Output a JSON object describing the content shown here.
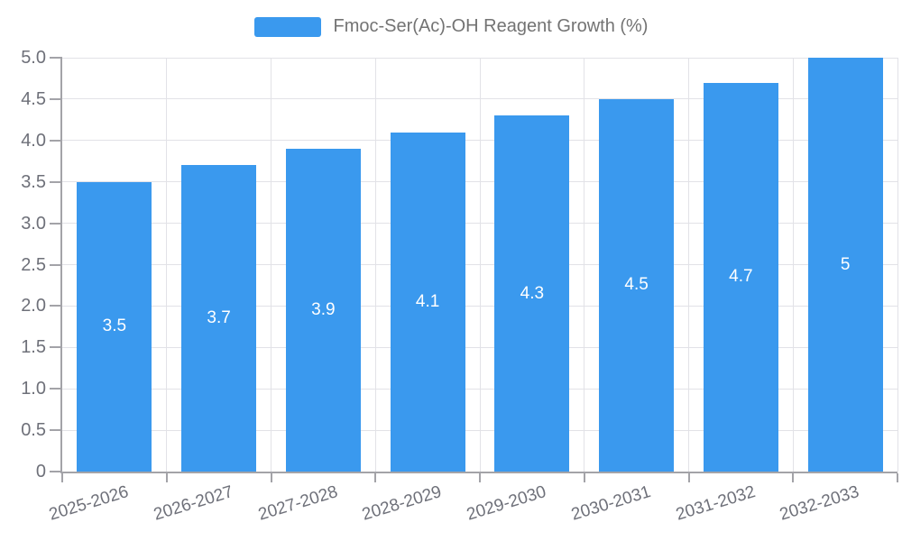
{
  "legend": {
    "label": "Fmoc-Ser(Ac)-OH Reagent Growth (%)",
    "swatch_color": "#3A99EE"
  },
  "chart_data": {
    "type": "bar",
    "title": "Fmoc-Ser(Ac)-OH Reagent Growth (%)",
    "categories": [
      "2025-2026",
      "2026-2027",
      "2027-2028",
      "2028-2029",
      "2029-2030",
      "2030-2031",
      "2031-2032",
      "2032-2033"
    ],
    "values": [
      3.5,
      3.7,
      3.9,
      4.1,
      4.3,
      4.5,
      4.7,
      5
    ],
    "bar_labels": [
      "3.5",
      "3.7",
      "3.9",
      "4.1",
      "4.3",
      "4.5",
      "4.7",
      "5"
    ],
    "xlabel": "",
    "ylabel": "",
    "ylim": [
      0,
      5
    ],
    "ytick_step": 0.5,
    "ytick_values": [
      0,
      0.5,
      1,
      1.5,
      2,
      2.5,
      3,
      3.5,
      4,
      4.5,
      5
    ],
    "ytick_labels": [
      "0",
      "0.5",
      "1.0",
      "1.5",
      "2.0",
      "2.5",
      "3.0",
      "3.5",
      "4.0",
      "4.5",
      "5.0"
    ],
    "grid": true,
    "legend_position": "top-center",
    "bar_color": "#3A99EE",
    "bar_label_color": "#ffffff",
    "axis_line_color": "#A3A3A8",
    "grid_line_color": "#E2E2E7",
    "tick_text_color": "#6E7079"
  }
}
